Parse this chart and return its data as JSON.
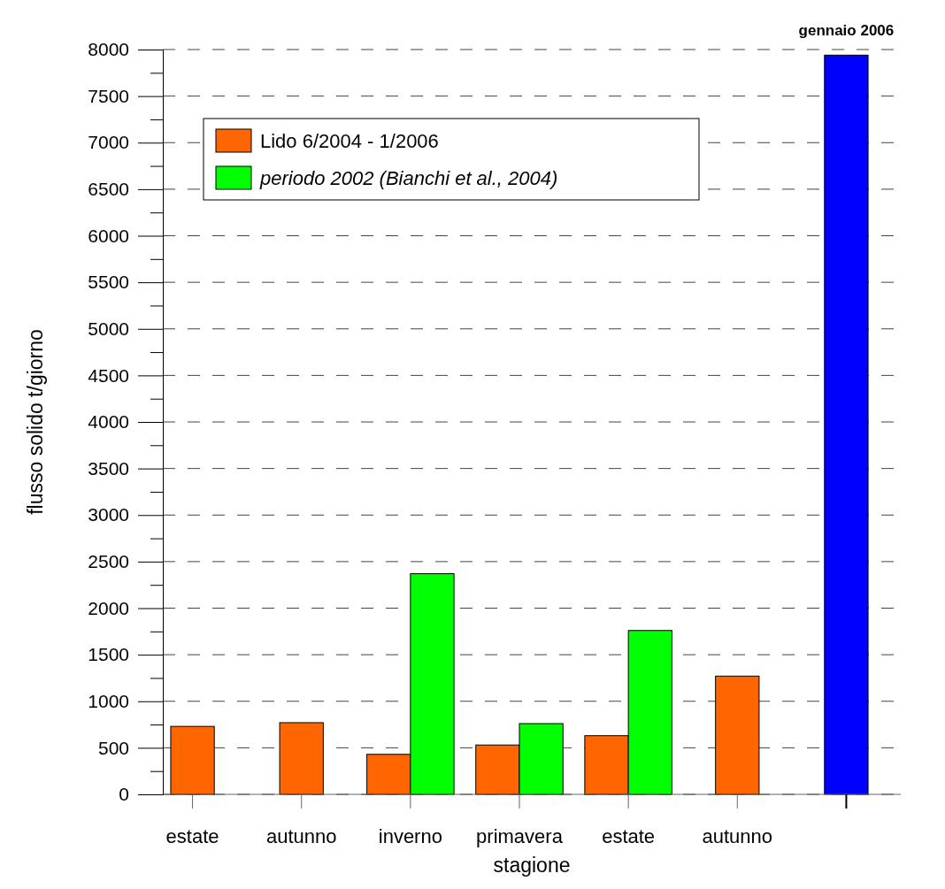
{
  "chart_data": {
    "type": "bar",
    "xlabel": "stagione",
    "ylabel": "flusso solido t/giorno",
    "categories": [
      "estate",
      "autunno",
      "inverno",
      "primavera",
      "estate",
      "autunno",
      null
    ],
    "series": [
      {
        "name": "Lido 6/2004 - 1/2006",
        "color": "#ff6600",
        "values": [
          730,
          770,
          430,
          530,
          630,
          1270,
          null
        ]
      },
      {
        "name": "periodo 2002 (Bianchi et al., 2004)",
        "color": "#00ff00",
        "values": [
          null,
          null,
          2370,
          760,
          1760,
          null,
          null
        ]
      },
      {
        "color": "#0000ff",
        "values": [
          null,
          null,
          null,
          null,
          null,
          null,
          7940
        ]
      }
    ],
    "ylim": [
      0,
      8000
    ],
    "yticks": [
      0,
      {
        "value": 250,
        "label": null
      },
      500,
      {
        "value": 750,
        "label": null
      },
      1000,
      {
        "value": 1250,
        "label": null
      },
      1500,
      {
        "value": 1750,
        "label": null
      },
      2000,
      {
        "value": 2250,
        "label": null
      },
      2500,
      {
        "value": 2750,
        "label": null
      },
      3000,
      {
        "value": 3250,
        "label": null
      },
      3500,
      {
        "value": 3750,
        "label": null
      },
      4000,
      {
        "value": 4250,
        "label": null
      },
      4500,
      {
        "value": 4750,
        "label": null
      },
      5000,
      {
        "value": 5250,
        "label": null
      },
      5500,
      {
        "value": 5750,
        "label": null
      },
      6000,
      {
        "value": 6250,
        "label": null
      },
      6500,
      {
        "value": 6750,
        "label": null
      },
      7000,
      {
        "value": 7250,
        "label": null
      },
      7500,
      {
        "value": 7750,
        "label": null
      },
      8000
    ],
    "grid": "y",
    "legend": "top left",
    "annotations": [
      "gennaio 2006"
    ]
  }
}
